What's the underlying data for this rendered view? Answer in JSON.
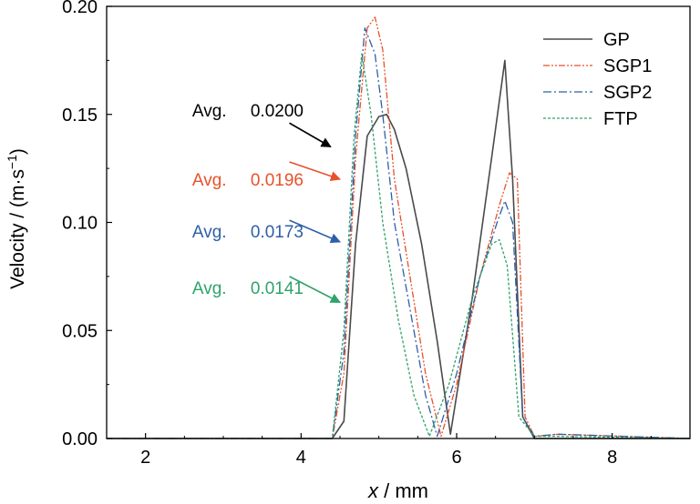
{
  "chart_data": {
    "type": "line",
    "xlabel_var": "x",
    "xlabel_unit": " / mm",
    "ylabel": "Velocity / (m·s",
    "ylabel_sup": "−1",
    "ylabel_close": ")",
    "xlim": [
      1.5,
      9.0
    ],
    "ylim": [
      0.0,
      0.2
    ],
    "xticks": [
      2,
      4,
      6,
      8
    ],
    "xtick_labels": [
      "2",
      "4",
      "6",
      "8"
    ],
    "yticks": [
      0.0,
      0.05,
      0.1,
      0.15,
      0.2
    ],
    "ytick_labels": [
      "0.00",
      "0.05",
      "0.10",
      "0.15",
      "0.20"
    ],
    "grid": false,
    "legend_position": "top-right",
    "series": [
      {
        "name": "GP",
        "color": "#4a4a4a",
        "dash": "",
        "width": 1.6,
        "points": [
          [
            1.5,
            0
          ],
          [
            4.4,
            0
          ],
          [
            4.55,
            0.008
          ],
          [
            4.7,
            0.09
          ],
          [
            4.85,
            0.14
          ],
          [
            5.0,
            0.149
          ],
          [
            5.1,
            0.15
          ],
          [
            5.2,
            0.143
          ],
          [
            5.35,
            0.125
          ],
          [
            5.55,
            0.09
          ],
          [
            5.75,
            0.045
          ],
          [
            5.92,
            0.002
          ],
          [
            6.0,
            0.02
          ],
          [
            6.2,
            0.065
          ],
          [
            6.45,
            0.13
          ],
          [
            6.62,
            0.175
          ],
          [
            6.72,
            0.12
          ],
          [
            6.85,
            0.01
          ],
          [
            7.0,
            0
          ],
          [
            9.0,
            0
          ]
        ]
      },
      {
        "name": "SGP1",
        "color": "#e8512a",
        "dash": "7,2,2,2,2,2",
        "width": 1.3,
        "points": [
          [
            1.5,
            0
          ],
          [
            4.4,
            0
          ],
          [
            4.55,
            0.03
          ],
          [
            4.7,
            0.13
          ],
          [
            4.85,
            0.19
          ],
          [
            4.95,
            0.195
          ],
          [
            5.05,
            0.18
          ],
          [
            5.2,
            0.12
          ],
          [
            5.4,
            0.075
          ],
          [
            5.6,
            0.03
          ],
          [
            5.8,
            0.001
          ],
          [
            6.0,
            0.025
          ],
          [
            6.3,
            0.075
          ],
          [
            6.55,
            0.108
          ],
          [
            6.68,
            0.123
          ],
          [
            6.78,
            0.12
          ],
          [
            6.88,
            0.01
          ],
          [
            7.0,
            0.001
          ],
          [
            7.3,
            0.002
          ],
          [
            9.0,
            0
          ]
        ]
      },
      {
        "name": "SGP2",
        "color": "#2e5fa8",
        "dash": "9,3,2,3",
        "width": 1.3,
        "points": [
          [
            1.5,
            0
          ],
          [
            4.4,
            0
          ],
          [
            4.55,
            0.04
          ],
          [
            4.7,
            0.14
          ],
          [
            4.82,
            0.19
          ],
          [
            4.95,
            0.178
          ],
          [
            5.05,
            0.15
          ],
          [
            5.2,
            0.1
          ],
          [
            5.4,
            0.06
          ],
          [
            5.6,
            0.02
          ],
          [
            5.75,
            0.001
          ],
          [
            6.0,
            0.03
          ],
          [
            6.3,
            0.075
          ],
          [
            6.52,
            0.1
          ],
          [
            6.62,
            0.11
          ],
          [
            6.72,
            0.1
          ],
          [
            6.85,
            0.01
          ],
          [
            7.0,
            0.001
          ],
          [
            7.3,
            0.002
          ],
          [
            9.0,
            0
          ]
        ]
      },
      {
        "name": "FTP",
        "color": "#2ea36a",
        "dash": "3,2",
        "width": 1.3,
        "points": [
          [
            1.5,
            0
          ],
          [
            4.4,
            0
          ],
          [
            4.55,
            0.05
          ],
          [
            4.68,
            0.14
          ],
          [
            4.78,
            0.178
          ],
          [
            4.9,
            0.15
          ],
          [
            5.05,
            0.1
          ],
          [
            5.25,
            0.055
          ],
          [
            5.45,
            0.02
          ],
          [
            5.65,
            0.001
          ],
          [
            5.9,
            0.025
          ],
          [
            6.2,
            0.065
          ],
          [
            6.45,
            0.09
          ],
          [
            6.55,
            0.092
          ],
          [
            6.65,
            0.08
          ],
          [
            6.8,
            0.01
          ],
          [
            7.0,
            0.001
          ],
          [
            7.3,
            0.001
          ],
          [
            9.0,
            0
          ]
        ]
      }
    ],
    "annotations": [
      {
        "label": "Avg.",
        "value": "0.0200",
        "color": "#000000",
        "label_x": 2.6,
        "y": 0.152,
        "arrow_from": [
          3.85,
          0.146
        ],
        "arrow_to": [
          4.38,
          0.135
        ]
      },
      {
        "label": "Avg.",
        "value": "0.0196",
        "color": "#e8512a",
        "label_x": 2.6,
        "y": 0.12,
        "arrow_from": [
          3.85,
          0.128
        ],
        "arrow_to": [
          4.5,
          0.12
        ]
      },
      {
        "label": "Avg.",
        "value": "0.0173",
        "color": "#2e5fa8",
        "label_x": 2.6,
        "y": 0.096,
        "arrow_from": [
          3.85,
          0.101
        ],
        "arrow_to": [
          4.5,
          0.091
        ]
      },
      {
        "label": "Avg.",
        "value": "0.0141",
        "color": "#2ea36a",
        "label_x": 2.6,
        "y": 0.07,
        "arrow_from": [
          3.85,
          0.075
        ],
        "arrow_to": [
          4.5,
          0.063
        ]
      }
    ]
  }
}
